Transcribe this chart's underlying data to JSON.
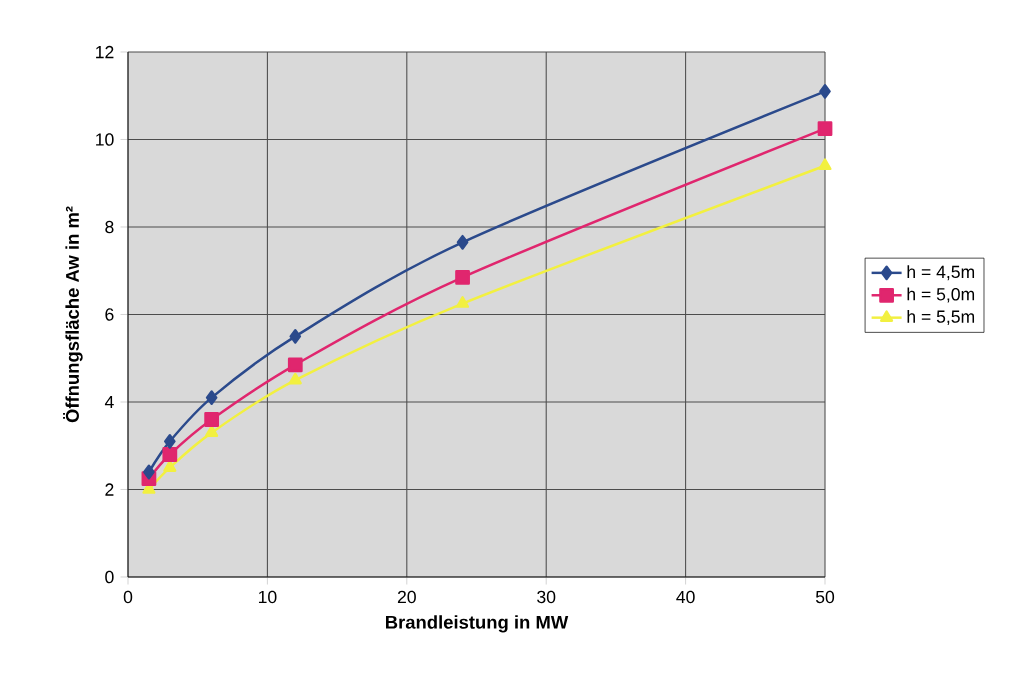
{
  "chart_data": {
    "type": "line",
    "xlabel": "Brandleistung in MW",
    "ylabel": "Öffnungsfläche Aw in m²",
    "x": [
      1.5,
      3,
      6,
      12,
      24,
      50
    ],
    "series": [
      {
        "name": "h = 4,5m",
        "color": "#2b4a8c",
        "marker": "diamond",
        "values": [
          2.4,
          3.1,
          4.1,
          5.5,
          7.65,
          11.1
        ]
      },
      {
        "name": "h = 5,0m",
        "color": "#e0266e",
        "marker": "square",
        "values": [
          2.25,
          2.8,
          3.6,
          4.85,
          6.85,
          10.25
        ]
      },
      {
        "name": "h = 5,5m",
        "color": "#f2f040",
        "marker": "triangle",
        "values": [
          2.0,
          2.5,
          3.3,
          4.5,
          6.25,
          9.4
        ]
      }
    ],
    "xlim": [
      0,
      50
    ],
    "xticks": [
      0,
      10,
      20,
      30,
      40,
      50
    ],
    "ylim": [
      0,
      12
    ],
    "yticks": [
      0,
      2,
      4,
      6,
      8,
      10,
      12
    ],
    "grid": true,
    "legend": "right",
    "line_style": "solid"
  }
}
